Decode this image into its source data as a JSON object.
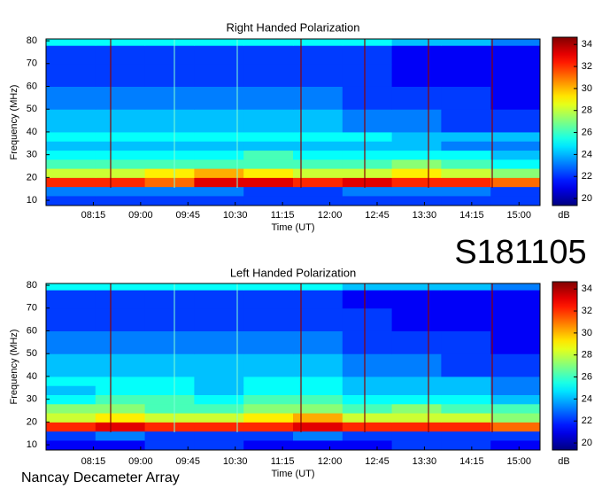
{
  "chart_data": [
    {
      "type": "heatmap",
      "title": "Right Handed Polarization",
      "x_label": "Time (UT)",
      "y_label": "Frequency (MHz)",
      "colorbar_label": "dB",
      "xbins": [
        450,
        497,
        544,
        591,
        638,
        685,
        732,
        779,
        826,
        873,
        920
      ],
      "ybins": [
        8,
        12,
        16,
        20,
        24,
        28,
        32,
        36,
        40,
        50,
        60,
        70,
        78,
        81
      ],
      "values": [
        [
          22,
          22,
          22,
          22,
          22,
          22,
          22,
          22,
          22,
          22
        ],
        [
          23,
          23,
          23,
          23,
          22,
          22,
          23,
          23,
          23,
          22
        ],
        [
          32,
          32,
          31,
          33,
          33,
          32,
          33,
          32,
          32,
          31
        ],
        [
          28,
          28,
          29,
          30,
          29,
          28,
          28,
          29,
          28,
          27
        ],
        [
          26,
          26,
          26,
          26,
          26,
          26,
          26,
          27,
          26,
          25
        ],
        [
          25,
          25,
          25,
          25,
          26,
          25,
          25,
          25,
          25,
          24
        ],
        [
          24,
          24,
          24,
          24,
          24,
          24,
          24,
          24,
          23,
          23
        ],
        [
          25,
          25,
          25,
          25,
          25,
          25,
          25,
          24,
          24,
          24
        ],
        [
          24,
          24,
          24,
          24,
          24,
          24,
          23,
          23,
          22,
          22
        ],
        [
          23,
          23,
          23,
          23,
          23,
          23,
          22,
          22,
          22,
          21
        ],
        [
          22,
          22,
          22,
          22,
          22,
          22,
          22,
          21,
          21,
          21
        ],
        [
          22,
          22,
          22,
          22,
          22,
          22,
          22,
          21,
          21,
          21
        ],
        [
          25,
          25,
          25,
          25,
          25,
          25,
          25,
          24,
          24,
          23
        ]
      ],
      "xlim": [
        450,
        920
      ],
      "ylim": [
        7.7,
        80.8
      ],
      "clim": [
        19.2,
        34.5
      ],
      "xticks": [
        {
          "value": 495,
          "label": "08:15"
        },
        {
          "value": 540,
          "label": "09:00"
        },
        {
          "value": 585,
          "label": "09:45"
        },
        {
          "value": 630,
          "label": "10:30"
        },
        {
          "value": 675,
          "label": "11:15"
        },
        {
          "value": 720,
          "label": "12:00"
        },
        {
          "value": 765,
          "label": "12:45"
        },
        {
          "value": 810,
          "label": "13:30"
        },
        {
          "value": 855,
          "label": "14:15"
        },
        {
          "value": 900,
          "label": "15:00"
        }
      ],
      "yticks": [
        10,
        20,
        30,
        40,
        50,
        60,
        70,
        80
      ],
      "cticks": [
        20,
        22,
        24,
        26,
        28,
        30,
        32,
        34
      ],
      "colormap": "jet"
    },
    {
      "type": "heatmap",
      "title": "Left Handed Polarization",
      "x_label": "Time (UT)",
      "y_label": "Frequency (MHz)",
      "colorbar_label": "dB",
      "xbins": [
        450,
        497,
        544,
        591,
        638,
        685,
        732,
        779,
        826,
        873,
        920
      ],
      "ybins": [
        8,
        12,
        16,
        20,
        24,
        28,
        32,
        36,
        40,
        50,
        60,
        70,
        78,
        81
      ],
      "values": [
        [
          21,
          21,
          22,
          22,
          21,
          21,
          21,
          22,
          22,
          21
        ],
        [
          22,
          23,
          22,
          22,
          22,
          23,
          22,
          22,
          22,
          22
        ],
        [
          32,
          33,
          32,
          32,
          32,
          33,
          32,
          32,
          32,
          31
        ],
        [
          28,
          29,
          28,
          28,
          29,
          30,
          28,
          28,
          28,
          27
        ],
        [
          27,
          27,
          26,
          26,
          27,
          27,
          26,
          27,
          26,
          26
        ],
        [
          25,
          26,
          26,
          25,
          26,
          26,
          25,
          25,
          25,
          24
        ],
        [
          24,
          25,
          25,
          24,
          25,
          25,
          24,
          24,
          24,
          23
        ],
        [
          25,
          25,
          25,
          24,
          25,
          25,
          24,
          24,
          24,
          23
        ],
        [
          24,
          24,
          24,
          24,
          24,
          24,
          23,
          23,
          22,
          22
        ],
        [
          23,
          23,
          23,
          23,
          23,
          23,
          22,
          22,
          22,
          21
        ],
        [
          22,
          22,
          22,
          22,
          22,
          22,
          22,
          21,
          21,
          21
        ],
        [
          22,
          22,
          22,
          22,
          22,
          22,
          21,
          21,
          21,
          21
        ],
        [
          25,
          25,
          25,
          25,
          25,
          25,
          24,
          24,
          24,
          23
        ]
      ],
      "xlim": [
        450,
        920
      ],
      "ylim": [
        7.7,
        80.8
      ],
      "clim": [
        19.2,
        34.5
      ],
      "xticks": [
        {
          "value": 495,
          "label": "08:15"
        },
        {
          "value": 540,
          "label": "09:00"
        },
        {
          "value": 585,
          "label": "09:45"
        },
        {
          "value": 630,
          "label": "10:30"
        },
        {
          "value": 675,
          "label": "11:15"
        },
        {
          "value": 720,
          "label": "12:00"
        },
        {
          "value": 765,
          "label": "12:45"
        },
        {
          "value": 810,
          "label": "13:30"
        },
        {
          "value": 855,
          "label": "14:15"
        },
        {
          "value": 900,
          "label": "15:00"
        }
      ],
      "yticks": [
        10,
        20,
        30,
        40,
        50,
        60,
        70,
        80
      ],
      "cticks": [
        20,
        22,
        24,
        26,
        28,
        30,
        32,
        34
      ],
      "colormap": "jet"
    }
  ],
  "annotations": {
    "id": "S181105",
    "source": "Nancay Decameter Array"
  }
}
